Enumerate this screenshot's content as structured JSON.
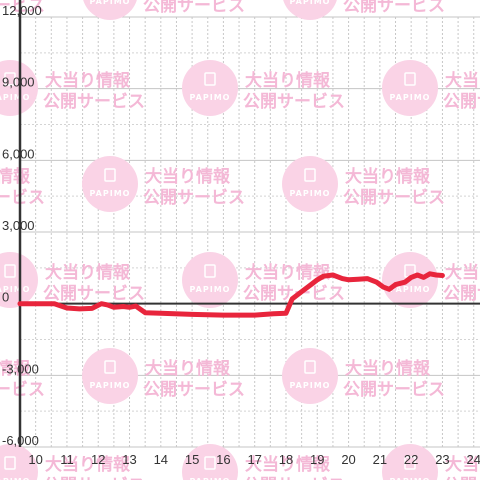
{
  "watermark": {
    "line1": "大当り情報",
    "line2": "公開サービス",
    "brand": "PAPIMO"
  },
  "chart_data": {
    "type": "line",
    "title": "",
    "xlabel": "",
    "ylabel": "",
    "xlim": [
      9.5,
      24.2
    ],
    "ylim": [
      -6000,
      12000
    ],
    "grid": true,
    "legend": "none",
    "x_ticks": [
      10,
      11,
      12,
      13,
      14,
      15,
      16,
      17,
      18,
      19,
      20,
      21,
      22,
      23,
      24
    ],
    "y_ticks": [
      -6000,
      -3000,
      0,
      3000,
      6000,
      9000,
      12000
    ],
    "y_tick_labels": [
      "-6,000",
      "-3,000",
      "0",
      "3,000",
      "6,000",
      "9,000",
      "12,000"
    ],
    "colors": {
      "line": "#e8253c",
      "zero_axis": "#333333",
      "grid": "#c8c8c8",
      "watermark": "#f4b8d6"
    },
    "series": [
      {
        "color": "#e8253c",
        "x": [
          9.5,
          10.6,
          11.0,
          11.4,
          11.8,
          12.1,
          12.3,
          12.5,
          12.8,
          13.0,
          13.2,
          13.5,
          14.0,
          15.0,
          16.0,
          17.0,
          17.6,
          18.0,
          18.2,
          18.5,
          18.8,
          19.0,
          19.2,
          19.5,
          19.8,
          20.0,
          20.3,
          20.6,
          20.9,
          21.1,
          21.3,
          21.5,
          21.8,
          22.0,
          22.2,
          22.4,
          22.6,
          22.8,
          23.0
        ],
        "y": [
          0,
          0,
          -180,
          -220,
          -200,
          0,
          -50,
          -150,
          -120,
          -150,
          -100,
          -380,
          -400,
          -450,
          -480,
          -480,
          -420,
          -400,
          200,
          500,
          800,
          1000,
          1150,
          1200,
          1050,
          1000,
          1020,
          1050,
          900,
          700,
          600,
          800,
          900,
          1100,
          1200,
          1100,
          1250,
          1200,
          1180
        ]
      }
    ]
  }
}
